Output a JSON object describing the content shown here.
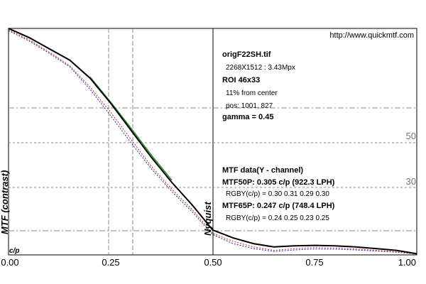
{
  "chart_data": {
    "type": "line",
    "xlabel": "c/p",
    "ylabel": "MTF (contrast)",
    "xlim": [
      0,
      1
    ],
    "ylim": [
      0,
      1
    ],
    "x_ticks": [
      "0.00",
      "0.25",
      "0.50",
      "0.75",
      "1.00"
    ],
    "reference_labels": [
      "50",
      "30"
    ],
    "reference_values": [
      0.5,
      0.3
    ],
    "annotation_nyquist": "Nyquist",
    "url": "http://www.quickmtf.com",
    "info": {
      "filename": "origF22SH.tif",
      "dimensions": "2268X1512 : 3.43Mpx",
      "roi": "ROI 46x33",
      "from_center": "11% from center",
      "pos": "pos: 1001, 827",
      "gamma": "gamma = 0.45",
      "mtf_title": "MTF data(Y - channel)",
      "mtf50": "MTF50P: 0.305 c/p (922.3 LPH)",
      "rgby50": "RGBY(c/p) = 0.30 0.31 0.29 0.30",
      "mtf65": "MTF65P: 0.247 c/p (748.4 LPH)",
      "rgby65": "RGBY(c/p) = 0.24 0.25 0.23 0.25"
    },
    "series": [
      {
        "color": "#000000",
        "x": [
          0,
          0.05,
          0.1,
          0.15,
          0.2,
          0.25,
          0.3,
          0.35,
          0.4,
          0.45,
          0.5,
          0.55,
          0.6,
          0.65,
          0.7,
          0.75,
          0.8,
          0.85,
          0.9,
          0.95,
          1.0
        ],
        "y": [
          1.0,
          0.96,
          0.91,
          0.86,
          0.78,
          0.67,
          0.55,
          0.43,
          0.32,
          0.22,
          0.11,
          0.075,
          0.05,
          0.035,
          0.04,
          0.042,
          0.04,
          0.035,
          0.028,
          0.02,
          0.005
        ]
      },
      {
        "color": "#2e8b2e",
        "x": [
          0.2,
          0.25,
          0.3,
          0.35,
          0.4
        ],
        "y": [
          0.785,
          0.675,
          0.56,
          0.44,
          0.33
        ]
      },
      {
        "color": "#cc2222",
        "x": [
          0,
          0.05,
          0.1,
          0.15,
          0.2,
          0.25,
          0.3,
          0.35,
          0.4,
          0.45,
          0.5,
          0.55,
          0.6,
          0.65,
          0.7,
          0.75,
          0.8,
          0.85,
          0.9,
          0.95,
          1.0
        ],
        "y": [
          0.995,
          0.95,
          0.895,
          0.835,
          0.74,
          0.63,
          0.51,
          0.39,
          0.29,
          0.2,
          0.095,
          0.06,
          0.035,
          0.02,
          0.028,
          0.032,
          0.03,
          0.026,
          0.02,
          0.014,
          0.004
        ]
      },
      {
        "color": "#2222cc",
        "x": [
          0,
          0.05,
          0.1,
          0.15,
          0.2,
          0.25,
          0.3,
          0.35,
          0.4,
          0.45,
          0.5,
          0.55,
          0.6,
          0.65,
          0.7,
          0.75,
          0.8,
          0.85,
          0.9,
          0.95,
          1.0
        ],
        "y": [
          0.99,
          0.945,
          0.89,
          0.83,
          0.73,
          0.615,
          0.495,
          0.38,
          0.28,
          0.19,
          0.09,
          0.05,
          0.028,
          0.015,
          0.022,
          0.026,
          0.025,
          0.022,
          0.017,
          0.012,
          0.004
        ]
      }
    ]
  }
}
